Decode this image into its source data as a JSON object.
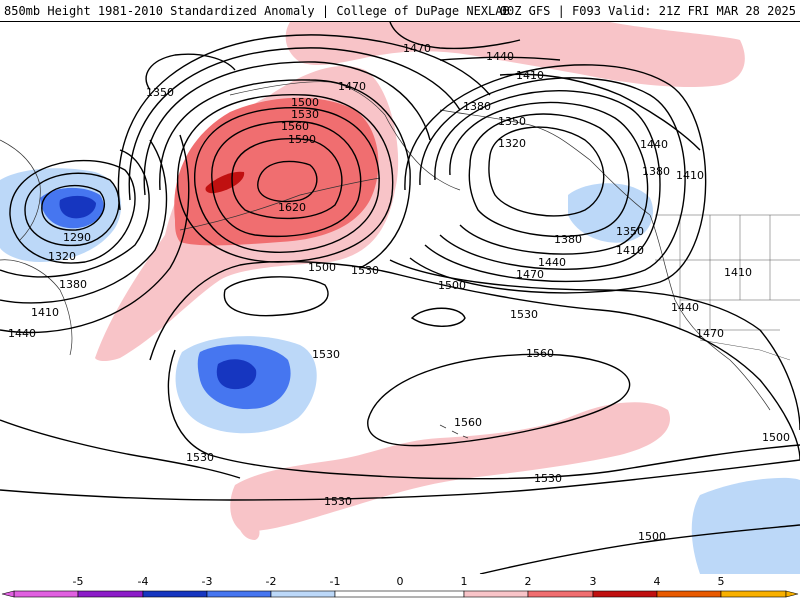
{
  "header": {
    "left_title": "850mb Height 1981-2010 Standardized Anomaly | College of DuPage NEXLAB",
    "right_title": "00Z GFS | F093 Valid: 21Z FRI MAR 28 2025"
  },
  "colors": {
    "neg5": "#e060e0",
    "neg4": "#8c1cc8",
    "neg3": "#1636c0",
    "neg2": "#4676f0",
    "neg1": "#bcd8f8",
    "zero": "#ffffff",
    "pos1": "#f8c4c8",
    "pos2": "#f06e70",
    "pos3": "#c01010",
    "pos4": "#e85a00",
    "pos5": "#f8b000",
    "contour": "#000000"
  },
  "legend": {
    "ticks": [
      "-5",
      "-4",
      "-3",
      "-2",
      "-1",
      "0",
      "1",
      "2",
      "3",
      "4",
      "5"
    ]
  },
  "contour_labels": [
    {
      "text": "1470"
    },
    {
      "text": "1440"
    },
    {
      "text": "1410"
    },
    {
      "text": "1350"
    },
    {
      "text": "1470"
    },
    {
      "text": "1500"
    },
    {
      "text": "1530"
    },
    {
      "text": "1560"
    },
    {
      "text": "1590"
    },
    {
      "text": "1620"
    },
    {
      "text": "1380"
    },
    {
      "text": "1350"
    },
    {
      "text": "1320"
    },
    {
      "text": "1440"
    },
    {
      "text": "1380"
    },
    {
      "text": "1410"
    },
    {
      "text": "1290"
    },
    {
      "text": "1320"
    },
    {
      "text": "1380"
    },
    {
      "text": "1410"
    },
    {
      "text": "1440"
    },
    {
      "text": "1500"
    },
    {
      "text": "1530"
    },
    {
      "text": "1500"
    },
    {
      "text": "1350"
    },
    {
      "text": "1380"
    },
    {
      "text": "1410"
    },
    {
      "text": "1440"
    },
    {
      "text": "1470"
    },
    {
      "text": "1410"
    },
    {
      "text": "1440"
    },
    {
      "text": "1470"
    },
    {
      "text": "1530"
    },
    {
      "text": "1530"
    },
    {
      "text": "1560"
    },
    {
      "text": "1560"
    },
    {
      "text": "1530"
    },
    {
      "text": "1530"
    },
    {
      "text": "1530"
    },
    {
      "text": "1500"
    },
    {
      "text": "1500"
    }
  ]
}
